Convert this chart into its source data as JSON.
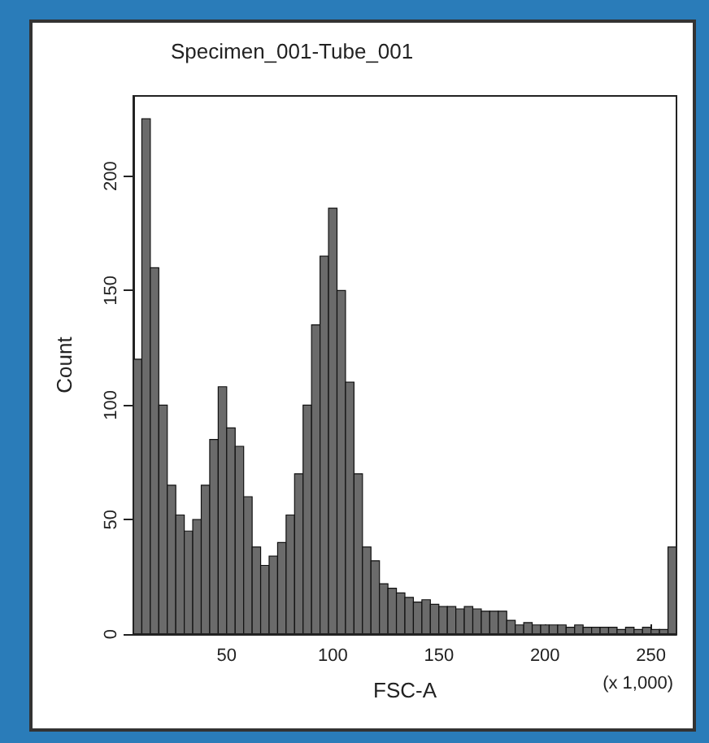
{
  "chart_data": {
    "type": "histogram",
    "title": "Specimen_001-Tube_001",
    "xlabel": "FSC-A",
    "ylabel": "Count",
    "annotations": [
      "(x 1,000)"
    ],
    "bins": [
      6,
      10,
      14,
      18,
      22,
      26,
      30,
      34,
      38,
      42,
      46,
      50,
      54,
      58,
      62,
      66,
      70,
      74,
      78,
      82,
      86,
      90,
      94,
      98,
      102,
      106,
      110,
      114,
      118,
      122,
      126,
      130,
      134,
      138,
      142,
      146,
      150,
      154,
      158,
      162,
      166,
      170,
      174,
      178,
      182,
      186,
      190,
      194,
      198,
      202,
      206,
      210,
      214,
      218,
      222,
      226,
      230,
      234,
      238,
      242,
      246,
      250,
      254,
      258,
      262
    ],
    "values": [
      120,
      225,
      160,
      100,
      65,
      52,
      45,
      50,
      65,
      85,
      108,
      90,
      82,
      60,
      38,
      30,
      34,
      40,
      52,
      70,
      100,
      135,
      165,
      186,
      150,
      110,
      70,
      38,
      32,
      22,
      20,
      18,
      16,
      14,
      15,
      13,
      12,
      12,
      11,
      12,
      11,
      10,
      10,
      10,
      6,
      4,
      5,
      4,
      4,
      4,
      4,
      3,
      4,
      3,
      3,
      3,
      3,
      2,
      3,
      2,
      3,
      2,
      2,
      38
    ],
    "color": "#6b6b6b",
    "xlim": [
      6,
      262
    ],
    "ylim": [
      0,
      235
    ],
    "xticks": [
      50,
      100,
      150,
      200,
      250
    ],
    "yticks": [
      0,
      50,
      100,
      150,
      200
    ]
  }
}
